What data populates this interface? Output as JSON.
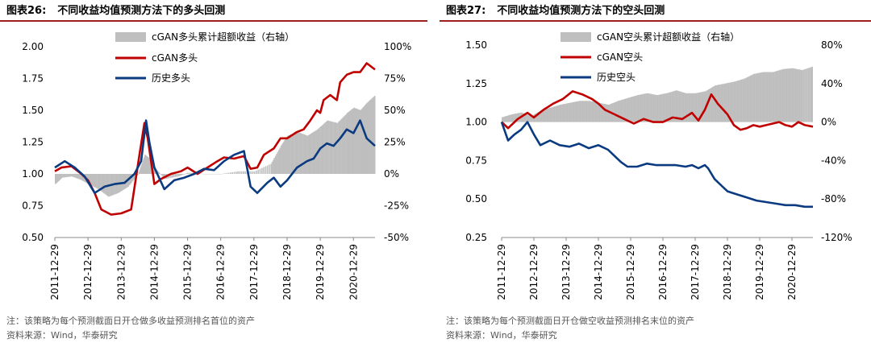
{
  "panels": [
    {
      "title_num": "图表26:",
      "title_text": "不同收益均值预测方法下的多头回测",
      "note": "注：该策略为每个预测截面日开仓做多收益预测排名首位的资产",
      "source": "资料来源：Wind，华泰研究"
    },
    {
      "title_num": "图表27:",
      "title_text": "不同收益均值预测方法下的空头回测",
      "note": "注：该策略为每个预测截面日开仓做空收益预测排名末位的资产",
      "source": "资料来源：Wind，华泰研究"
    }
  ],
  "chart_data": [
    {
      "type": "line",
      "title": "",
      "x_categories": [
        "2011-12-29",
        "2012-12-29",
        "2013-12-29",
        "2014-12-29",
        "2015-12-29",
        "2016-12-29",
        "2017-12-29",
        "2018-12-29",
        "2019-12-29",
        "2020-12-29"
      ],
      "x_range": [
        2012.0,
        2021.65
      ],
      "y_left": {
        "ticks": [
          "2.00",
          "1.75",
          "1.50",
          "1.25",
          "1.00",
          "0.75",
          "0.50"
        ],
        "range": [
          0.5,
          2.0
        ]
      },
      "y_right": {
        "ticks": [
          "100%",
          "75%",
          "50%",
          "25%",
          "0%",
          "-25%",
          "-50%"
        ],
        "range": [
          -50,
          100
        ],
        "unit": "%"
      },
      "legend": [
        "cGAN多头累计超额收益（右轴）",
        "cGAN多头",
        "历史多头"
      ],
      "legend_position": "top",
      "colors": {
        "excess": "#bfbfbf",
        "cgan": "#c00000",
        "hist": "#0a3a80"
      },
      "series": [
        {
          "name": "cGAN多头累计超额收益（右轴）",
          "kind": "area",
          "axis": "right",
          "x": [
            2012.0,
            2012.2,
            2012.5,
            2012.8,
            2013.0,
            2013.3,
            2013.6,
            2013.9,
            2014.2,
            2014.5,
            2014.7,
            2014.85,
            2015.0,
            2015.3,
            2015.7,
            2016.0,
            2016.5,
            2017.0,
            2017.5,
            2018.0,
            2018.5,
            2018.8,
            2019.0,
            2019.3,
            2019.6,
            2019.9,
            2020.2,
            2020.5,
            2020.8,
            2021.0,
            2021.2,
            2021.4,
            2021.65
          ],
          "y": [
            -8,
            -3,
            -2,
            -5,
            -8,
            -12,
            -18,
            -15,
            -10,
            0,
            15,
            12,
            5,
            -4,
            -2,
            1,
            0,
            0,
            2,
            2,
            8,
            22,
            30,
            33,
            30,
            35,
            42,
            40,
            48,
            52,
            50,
            56,
            62
          ]
        },
        {
          "name": "cGAN多头",
          "kind": "line",
          "axis": "left",
          "x": [
            2012.0,
            2012.2,
            2012.5,
            2012.8,
            2013.0,
            2013.2,
            2013.4,
            2013.7,
            2014.0,
            2014.3,
            2014.55,
            2014.7,
            2014.8,
            2014.9,
            2015.0,
            2015.2,
            2015.5,
            2015.8,
            2016.0,
            2016.3,
            2016.6,
            2016.9,
            2017.1,
            2017.4,
            2017.7,
            2017.9,
            2018.1,
            2018.3,
            2018.6,
            2018.8,
            2019.0,
            2019.3,
            2019.5,
            2019.7,
            2019.9,
            2020.0,
            2020.1,
            2020.3,
            2020.5,
            2020.6,
            2020.8,
            2021.0,
            2021.2,
            2021.4,
            2021.65
          ],
          "y": [
            1.02,
            1.05,
            1.06,
            1.0,
            0.95,
            0.85,
            0.72,
            0.68,
            0.69,
            0.72,
            1.15,
            1.4,
            1.28,
            1.1,
            0.92,
            0.96,
            1.0,
            1.02,
            1.05,
            1.0,
            1.05,
            1.1,
            1.13,
            1.12,
            1.14,
            1.04,
            1.05,
            1.15,
            1.2,
            1.28,
            1.28,
            1.33,
            1.35,
            1.42,
            1.5,
            1.48,
            1.58,
            1.62,
            1.58,
            1.72,
            1.78,
            1.8,
            1.8,
            1.87,
            1.82
          ]
        },
        {
          "name": "历史多头",
          "kind": "line",
          "axis": "left",
          "x": [
            2012.0,
            2012.3,
            2012.6,
            2012.9,
            2013.2,
            2013.5,
            2013.8,
            2014.1,
            2014.4,
            2014.6,
            2014.75,
            2014.85,
            2015.0,
            2015.3,
            2015.6,
            2015.9,
            2016.2,
            2016.5,
            2016.8,
            2017.1,
            2017.4,
            2017.7,
            2017.9,
            2018.1,
            2018.4,
            2018.6,
            2018.8,
            2019.0,
            2019.3,
            2019.6,
            2019.8,
            2020.0,
            2020.2,
            2020.4,
            2020.6,
            2020.8,
            2021.0,
            2021.2,
            2021.4,
            2021.65
          ],
          "y": [
            1.05,
            1.1,
            1.05,
            0.98,
            0.85,
            0.9,
            0.92,
            0.93,
            1.0,
            1.1,
            1.42,
            1.25,
            1.05,
            0.88,
            0.95,
            0.97,
            1.0,
            1.04,
            1.03,
            1.1,
            1.15,
            1.18,
            0.9,
            0.85,
            0.93,
            0.97,
            0.9,
            0.95,
            1.05,
            1.1,
            1.12,
            1.2,
            1.24,
            1.22,
            1.28,
            1.35,
            1.32,
            1.42,
            1.28,
            1.22
          ]
        }
      ]
    },
    {
      "type": "line",
      "title": "",
      "x_categories": [
        "2011-12-29",
        "2012-12-29",
        "2013-12-29",
        "2014-12-29",
        "2015-12-29",
        "2016-12-29",
        "2017-12-29",
        "2018-12-29",
        "2019-12-29",
        "2020-12-29"
      ],
      "x_range": [
        2012.0,
        2021.65
      ],
      "y_left": {
        "ticks": [
          "1.50",
          "1.25",
          "1.00",
          "0.75",
          "0.50",
          "0.25"
        ],
        "range": [
          0.25,
          1.5
        ]
      },
      "y_right": {
        "ticks": [
          "80%",
          "40%",
          "0%",
          "-40%",
          "-80%",
          "-120%"
        ],
        "range": [
          -120,
          80
        ],
        "unit": "%"
      },
      "legend": [
        "cGAN空头累计超额收益（右轴）",
        "cGAN空头",
        "历史空头"
      ],
      "legend_position": "top",
      "colors": {
        "excess": "#bfbfbf",
        "cgan": "#c00000",
        "hist": "#0a3a80"
      },
      "series": [
        {
          "name": "cGAN空头累计超额收益（右轴）",
          "kind": "area",
          "axis": "right",
          "x": [
            2012.0,
            2012.3,
            2012.6,
            2012.9,
            2013.2,
            2013.5,
            2013.8,
            2014.1,
            2014.4,
            2014.7,
            2015.0,
            2015.3,
            2015.6,
            2015.9,
            2016.2,
            2016.5,
            2016.8,
            2017.1,
            2017.4,
            2017.7,
            2018.0,
            2018.3,
            2018.6,
            2018.9,
            2019.2,
            2019.5,
            2019.8,
            2020.1,
            2020.4,
            2020.7,
            2021.0,
            2021.3,
            2021.65
          ],
          "y": [
            5,
            8,
            10,
            6,
            12,
            15,
            18,
            20,
            22,
            22,
            20,
            18,
            22,
            25,
            28,
            30,
            28,
            30,
            33,
            30,
            30,
            32,
            38,
            40,
            42,
            45,
            50,
            52,
            52,
            55,
            56,
            54,
            58
          ]
        },
        {
          "name": "cGAN空头",
          "kind": "line",
          "axis": "left",
          "x": [
            2012.0,
            2012.2,
            2012.5,
            2012.8,
            2013.0,
            2013.3,
            2013.6,
            2013.9,
            2014.2,
            2014.5,
            2014.8,
            2015.0,
            2015.2,
            2015.5,
            2015.8,
            2016.1,
            2016.4,
            2016.7,
            2017.0,
            2017.3,
            2017.6,
            2017.9,
            2018.1,
            2018.3,
            2018.5,
            2018.7,
            2019.0,
            2019.2,
            2019.4,
            2019.6,
            2019.8,
            2020.0,
            2020.2,
            2020.4,
            2020.6,
            2020.8,
            2021.0,
            2021.2,
            2021.4,
            2021.65
          ],
          "y": [
            1.0,
            0.96,
            1.02,
            1.06,
            1.03,
            1.08,
            1.12,
            1.15,
            1.2,
            1.18,
            1.15,
            1.12,
            1.08,
            1.05,
            1.02,
            0.99,
            1.02,
            1.0,
            1.0,
            1.03,
            1.02,
            1.06,
            1.01,
            1.08,
            1.18,
            1.12,
            1.05,
            0.98,
            0.95,
            0.96,
            0.98,
            0.97,
            0.98,
            0.99,
            1.0,
            0.98,
            0.97,
            1.0,
            0.98,
            0.97
          ]
        },
        {
          "name": "历史空头",
          "kind": "line",
          "axis": "left",
          "x": [
            2012.0,
            2012.2,
            2012.4,
            2012.6,
            2012.8,
            2013.0,
            2013.2,
            2013.5,
            2013.8,
            2014.1,
            2014.4,
            2014.7,
            2015.0,
            2015.3,
            2015.5,
            2015.7,
            2015.9,
            2016.2,
            2016.5,
            2016.8,
            2017.1,
            2017.4,
            2017.7,
            2017.9,
            2018.1,
            2018.3,
            2018.4,
            2018.6,
            2018.8,
            2019.0,
            2019.3,
            2019.6,
            2019.9,
            2020.2,
            2020.5,
            2020.8,
            2021.1,
            2021.4,
            2021.65
          ],
          "y": [
            1.0,
            0.88,
            0.92,
            0.95,
            1.0,
            0.92,
            0.85,
            0.88,
            0.85,
            0.84,
            0.86,
            0.83,
            0.85,
            0.82,
            0.78,
            0.74,
            0.71,
            0.71,
            0.73,
            0.72,
            0.72,
            0.72,
            0.71,
            0.72,
            0.7,
            0.72,
            0.7,
            0.63,
            0.59,
            0.55,
            0.53,
            0.51,
            0.49,
            0.48,
            0.47,
            0.46,
            0.46,
            0.45,
            0.45
          ]
        }
      ]
    }
  ]
}
